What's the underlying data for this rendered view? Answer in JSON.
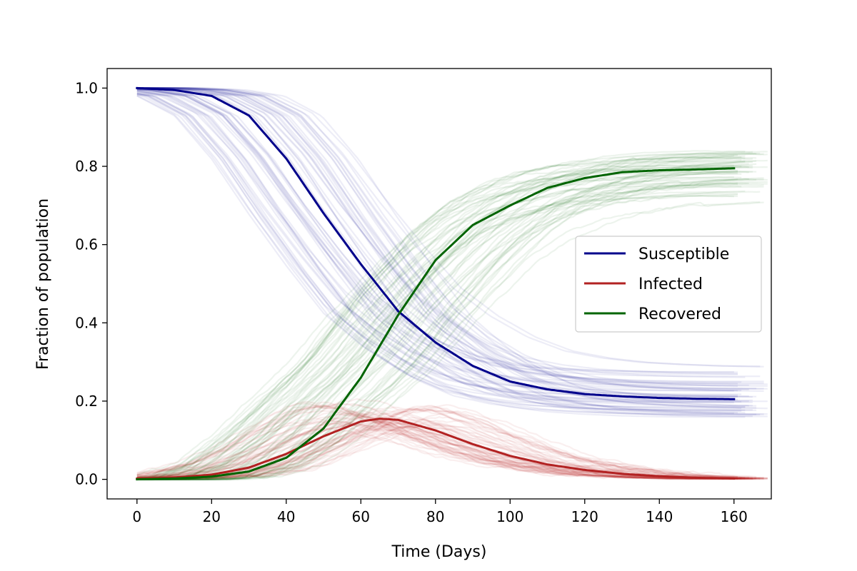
{
  "chart_data": {
    "type": "line",
    "title": "",
    "xlabel": "Time (Days)",
    "ylabel": "Fraction of population",
    "xlim": [
      -8,
      170
    ],
    "ylim": [
      -0.05,
      1.05
    ],
    "xticks": [
      0,
      20,
      40,
      60,
      80,
      100,
      120,
      140,
      160
    ],
    "yticks": [
      0.0,
      0.2,
      0.4,
      0.6,
      0.8,
      1.0
    ],
    "xtick_labels": [
      "0",
      "20",
      "40",
      "60",
      "80",
      "100",
      "120",
      "140",
      "160"
    ],
    "ytick_labels": [
      "0.0",
      "0.2",
      "0.4",
      "0.6",
      "0.8",
      "1.0"
    ],
    "grid": false,
    "legend_position": "center-right",
    "x": [
      0,
      10,
      20,
      30,
      40,
      50,
      60,
      65,
      70,
      80,
      90,
      100,
      110,
      120,
      130,
      140,
      150,
      160
    ],
    "series": [
      {
        "name": "Susceptible",
        "color": "#00008b",
        "values": [
          1.0,
          0.995,
          0.98,
          0.93,
          0.82,
          0.68,
          0.55,
          0.49,
          0.43,
          0.35,
          0.29,
          0.25,
          0.23,
          0.218,
          0.212,
          0.208,
          0.206,
          0.205
        ]
      },
      {
        "name": "Infected",
        "color": "#b22222",
        "values": [
          0.002,
          0.005,
          0.012,
          0.03,
          0.065,
          0.11,
          0.148,
          0.155,
          0.152,
          0.125,
          0.09,
          0.06,
          0.038,
          0.024,
          0.014,
          0.008,
          0.004,
          0.002
        ]
      },
      {
        "name": "Recovered",
        "color": "#006400",
        "values": [
          0.0,
          0.002,
          0.007,
          0.02,
          0.055,
          0.13,
          0.26,
          0.34,
          0.42,
          0.56,
          0.65,
          0.7,
          0.745,
          0.77,
          0.785,
          0.79,
          0.792,
          0.795
        ]
      }
    ],
    "stochastic_realizations": {
      "count_per_series": 60,
      "opacity": 0.07,
      "x_end_range": [
        160,
        170
      ]
    }
  }
}
